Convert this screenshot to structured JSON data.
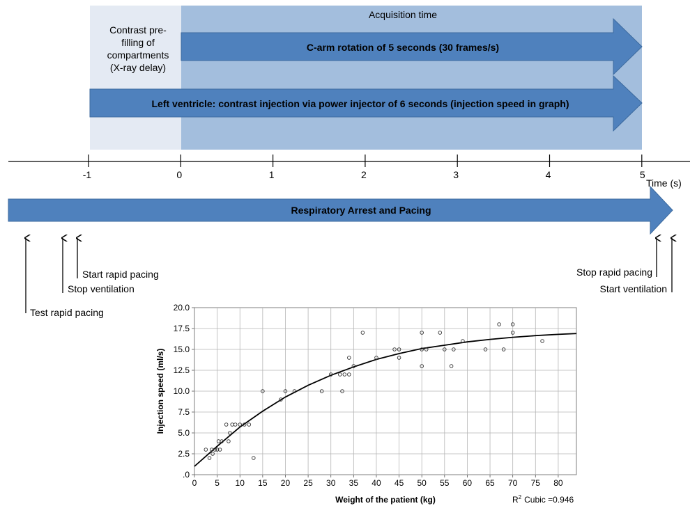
{
  "timeline": {
    "acquisition_label": "Acquisition time",
    "prefill_lines": [
      "Contrast pre-",
      "filling of",
      "compartments",
      "(X-ray delay)"
    ],
    "carm_label": "C-arm rotation of 5 seconds (30 frames/s)",
    "injection_label": "Left ventricle: contrast injection via power injector of 6 seconds (injection speed in graph)",
    "axis_ticks": [
      "-1",
      "0",
      "1",
      "2",
      "3",
      "4",
      "5"
    ],
    "axis_unit": "Time (s)",
    "respiratory_label": "Respiratory Arrest and Pacing",
    "events": {
      "test_rapid_pacing": "Test rapid pacing",
      "stop_ventilation": "Stop ventilation",
      "start_rapid_pacing": "Start rapid pacing",
      "stop_rapid_pacing": "Stop rapid pacing",
      "start_ventilation": "Start ventilation"
    },
    "colors": {
      "prefill_bg": "#e4eaf3",
      "acquisition_bg": "#a3bedd",
      "arrow_fill": "#4f81bd",
      "arrow_stroke": "#3c6a9e"
    }
  },
  "chart_data": {
    "type": "scatter",
    "xlabel": "Weight of the patient (kg)",
    "ylabel": "Injection speed (ml/s)",
    "xlim": [
      0,
      84
    ],
    "ylim": [
      0,
      20
    ],
    "xticks": [
      "0",
      "5",
      "10",
      "15",
      "20",
      "25",
      "30",
      "35",
      "40",
      "45",
      "50",
      "55",
      "60",
      "65",
      "70",
      "75",
      "80"
    ],
    "yticks": [
      ".0",
      "2.5",
      "5.0",
      "7.5",
      "10.0",
      "12.5",
      "15.0",
      "17.5",
      "20.0"
    ],
    "grid": true,
    "r2_label": "R",
    "r2_sup": "2",
    "r2_text": "Cubic =0.946",
    "fit": {
      "name": "Cubic fit",
      "points": [
        [
          0,
          1.0
        ],
        [
          5,
          3.4
        ],
        [
          10,
          5.7
        ],
        [
          15,
          7.6
        ],
        [
          20,
          9.3
        ],
        [
          25,
          10.7
        ],
        [
          30,
          11.9
        ],
        [
          35,
          12.9
        ],
        [
          40,
          13.8
        ],
        [
          45,
          14.5
        ],
        [
          50,
          15.1
        ],
        [
          55,
          15.5
        ],
        [
          60,
          15.9
        ],
        [
          65,
          16.2
        ],
        [
          70,
          16.45
        ],
        [
          75,
          16.65
        ],
        [
          80,
          16.8
        ],
        [
          84,
          16.9
        ]
      ]
    },
    "points": [
      [
        2.5,
        3.0
      ],
      [
        3.3,
        2.0
      ],
      [
        3.8,
        3.0
      ],
      [
        4.0,
        2.5
      ],
      [
        4.5,
        3.0
      ],
      [
        5.0,
        3.0
      ],
      [
        5.3,
        4.0
      ],
      [
        5.6,
        3.0
      ],
      [
        6.0,
        4.0
      ],
      [
        7.0,
        6.0
      ],
      [
        7.5,
        4.0
      ],
      [
        7.8,
        5.0
      ],
      [
        8.3,
        6.0
      ],
      [
        9.0,
        6.0
      ],
      [
        10.0,
        6.0
      ],
      [
        11.0,
        6.0
      ],
      [
        12.0,
        6.0
      ],
      [
        13.0,
        2.0
      ],
      [
        15.0,
        10.0
      ],
      [
        19.0,
        9.0
      ],
      [
        20.0,
        10.0
      ],
      [
        22.0,
        10.0
      ],
      [
        28.0,
        10.0
      ],
      [
        30.0,
        12.0
      ],
      [
        32.0,
        12.0
      ],
      [
        32.5,
        10.0
      ],
      [
        33.0,
        12.0
      ],
      [
        34.0,
        12.0
      ],
      [
        34.0,
        14.0
      ],
      [
        35.0,
        13.0
      ],
      [
        37.0,
        17.0
      ],
      [
        40.0,
        14.0
      ],
      [
        44.0,
        15.0
      ],
      [
        45.0,
        15.0
      ],
      [
        45.0,
        14.0
      ],
      [
        50.0,
        15.0
      ],
      [
        50.0,
        17.0
      ],
      [
        50.0,
        13.0
      ],
      [
        51.0,
        15.0
      ],
      [
        54.0,
        17.0
      ],
      [
        55.0,
        15.0
      ],
      [
        56.5,
        13.0
      ],
      [
        57.0,
        15.0
      ],
      [
        59.0,
        16.0
      ],
      [
        64.0,
        15.0
      ],
      [
        67.0,
        18.0
      ],
      [
        68.0,
        15.0
      ],
      [
        70.0,
        17.0
      ],
      [
        70.0,
        18.0
      ],
      [
        76.5,
        16.0
      ]
    ]
  }
}
